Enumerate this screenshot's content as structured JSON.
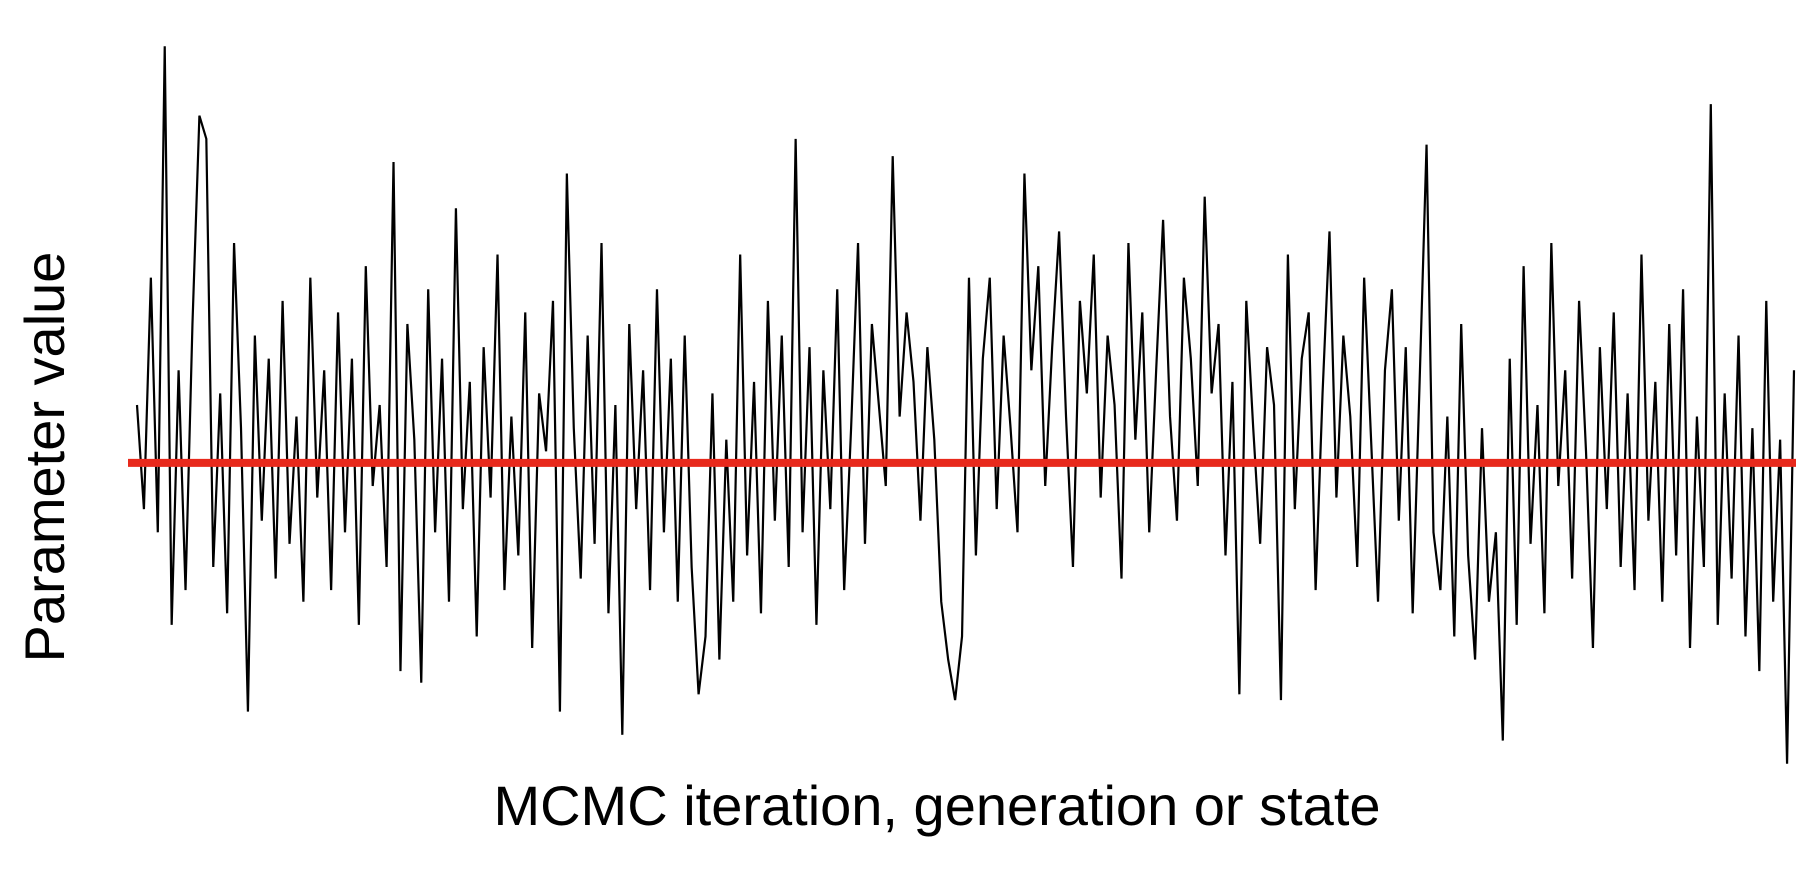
{
  "chart_data": {
    "type": "line",
    "x_label": "MCMC iteration, generation or state",
    "y_label": "Parameter value",
    "ylim": [
      -3,
      4
    ],
    "hline": {
      "value": 0,
      "color": "#e8291c"
    },
    "series": [
      {
        "color": "#000000",
        "values": [
          0.5,
          -0.4,
          1.6,
          -0.6,
          3.6,
          -1.4,
          0.8,
          -1.1,
          1.2,
          3.0,
          2.8,
          -0.9,
          0.6,
          -1.3,
          1.9,
          0.3,
          -2.15,
          1.1,
          -0.5,
          0.9,
          -1.0,
          1.4,
          -0.7,
          0.4,
          -1.2,
          1.6,
          -0.3,
          0.8,
          -1.1,
          1.3,
          -0.6,
          0.9,
          -1.4,
          1.7,
          -0.2,
          0.5,
          -0.9,
          2.6,
          -1.8,
          1.2,
          0.2,
          -1.9,
          1.5,
          -0.6,
          0.9,
          -1.2,
          2.2,
          -0.4,
          0.7,
          -1.5,
          1.0,
          -0.3,
          1.8,
          -1.1,
          0.4,
          -0.8,
          1.3,
          -1.6,
          0.6,
          0.1,
          1.4,
          -2.15,
          2.5,
          0.3,
          -1.0,
          1.1,
          -0.7,
          1.9,
          -1.3,
          0.5,
          -2.35,
          1.2,
          -0.4,
          0.8,
          -1.1,
          1.5,
          -0.6,
          0.9,
          -1.2,
          1.1,
          -0.9,
          -2.0,
          -1.5,
          0.6,
          -1.7,
          0.2,
          -1.2,
          1.8,
          -0.8,
          0.7,
          -1.3,
          1.4,
          -0.5,
          1.1,
          -0.9,
          2.8,
          -0.6,
          1.0,
          -1.4,
          0.8,
          -0.4,
          1.5,
          -1.1,
          0.3,
          1.9,
          -0.7,
          1.2,
          0.5,
          -0.2,
          2.65,
          0.4,
          1.3,
          0.7,
          -0.5,
          1.0,
          0.2,
          -1.2,
          -1.7,
          -2.05,
          -1.5,
          1.6,
          -0.8,
          0.9,
          1.6,
          -0.4,
          1.1,
          0.3,
          -0.6,
          2.5,
          0.8,
          1.7,
          -0.2,
          1.0,
          2.0,
          0.4,
          -0.9,
          1.4,
          0.6,
          1.8,
          -0.3,
          1.1,
          0.5,
          -1.0,
          1.9,
          0.2,
          1.3,
          -0.6,
          0.8,
          2.1,
          0.4,
          -0.5,
          1.6,
          0.9,
          -0.2,
          2.3,
          0.6,
          1.2,
          -0.8,
          0.7,
          -2.0,
          1.4,
          0.3,
          -0.7,
          1.0,
          0.5,
          -2.05,
          1.8,
          -0.4,
          0.9,
          1.3,
          -1.1,
          0.6,
          2.0,
          -0.3,
          1.1,
          0.4,
          -0.9,
          1.6,
          0.2,
          -1.2,
          0.8,
          1.5,
          -0.5,
          1.0,
          -1.3,
          0.7,
          2.75,
          -0.6,
          -1.1,
          0.4,
          -1.5,
          1.2,
          -0.8,
          -1.7,
          0.3,
          -1.2,
          -0.6,
          -2.4,
          0.9,
          -1.4,
          1.7,
          -0.7,
          0.5,
          -1.3,
          1.9,
          -0.2,
          0.8,
          -1.0,
          1.4,
          0.1,
          -1.6,
          1.0,
          -0.4,
          1.3,
          -0.9,
          0.6,
          -1.1,
          1.8,
          -0.5,
          0.7,
          -1.2,
          1.2,
          -0.8,
          1.5,
          -1.6,
          0.4,
          -0.9,
          3.1,
          -1.4,
          0.6,
          -1.0,
          1.1,
          -1.5,
          0.3,
          -1.8,
          1.4,
          -1.2,
          0.2,
          -2.6,
          0.8
        ]
      }
    ]
  }
}
